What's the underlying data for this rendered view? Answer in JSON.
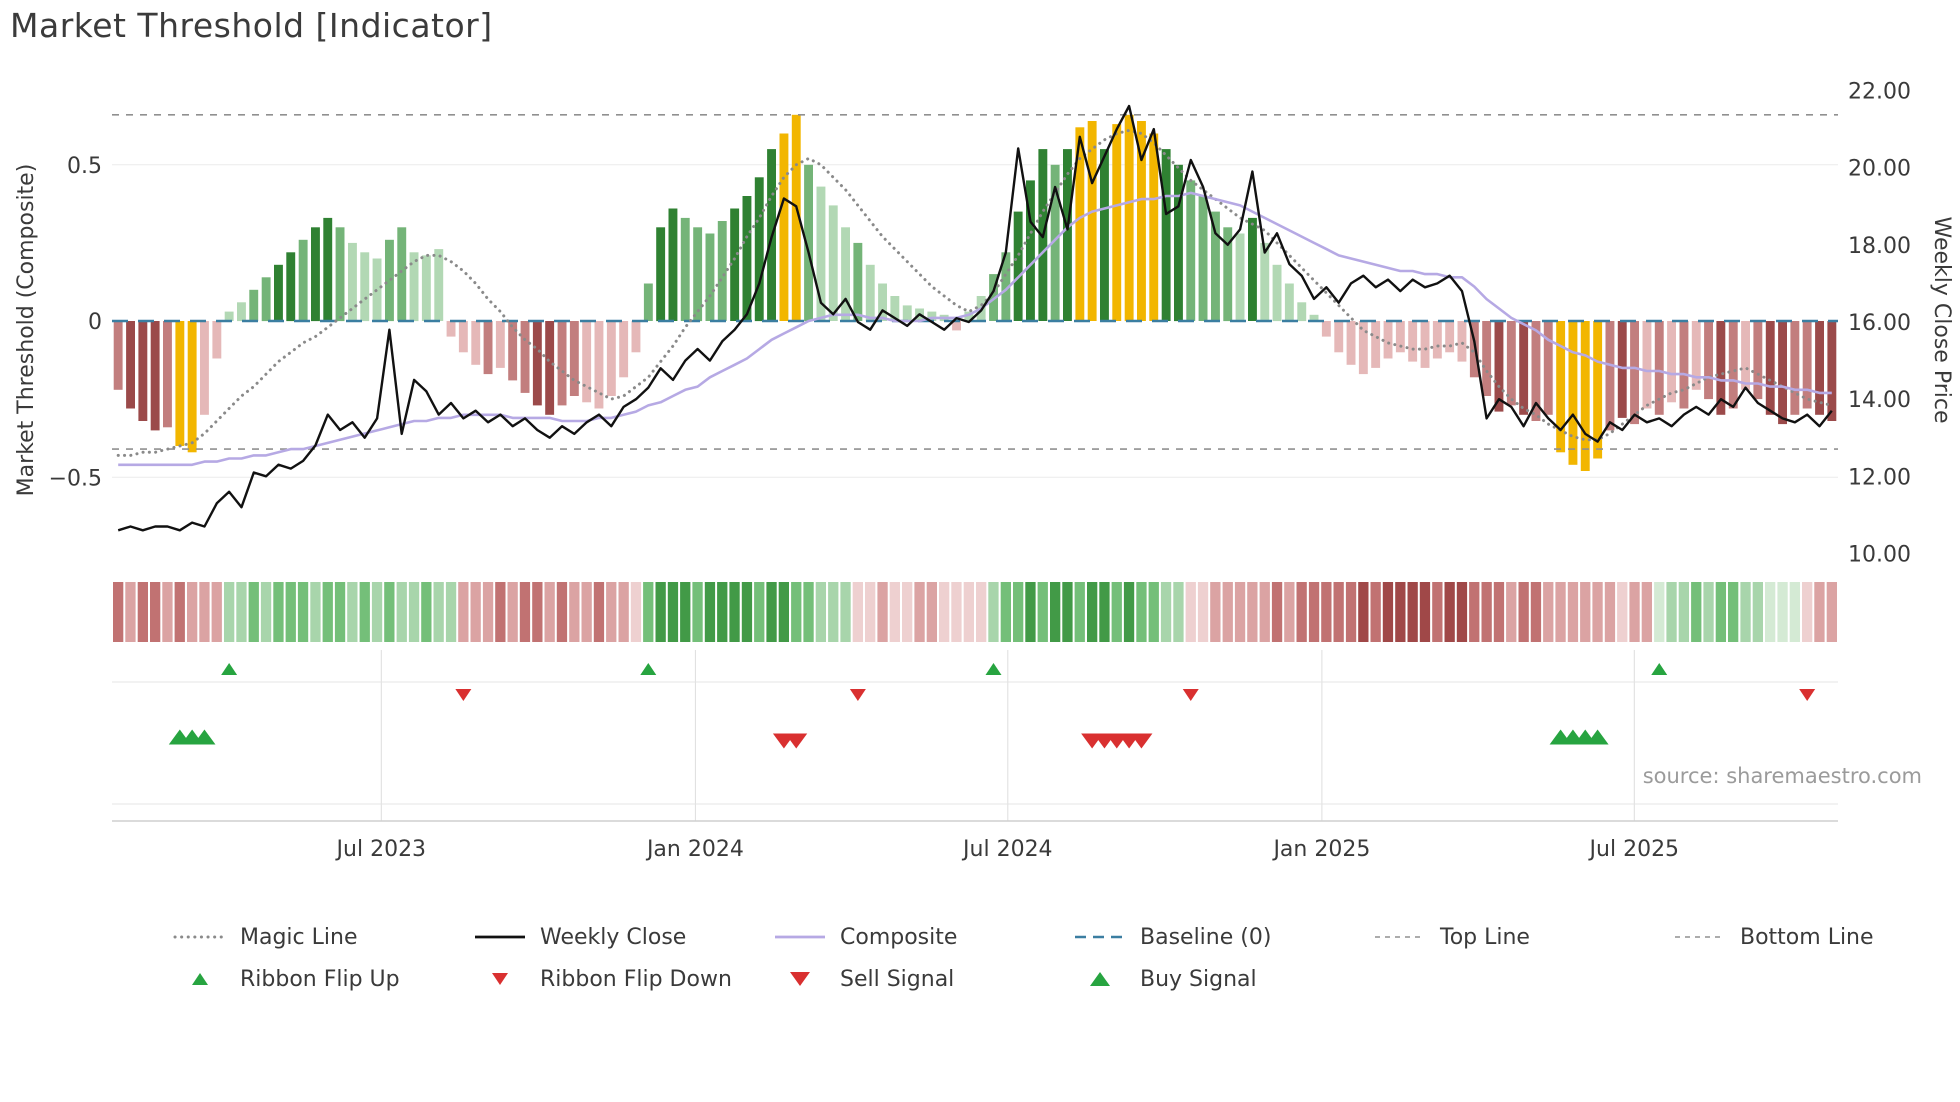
{
  "title": "Market Threshold [Indicator]",
  "source_text": "source: sharemaestro.com",
  "colors": {
    "bar": {
      "dg": "#2f8132",
      "mg": "#74b478",
      "lg": "#b2d8b4",
      "dr": "#9b4a4a",
      "mr": "#c27e7e",
      "lr": "#e5b8b8",
      "y": "#f2b600"
    },
    "ribbon": {
      "g1": "#d4ead4",
      "g2": "#a8d5ab",
      "g3": "#74bf79",
      "g4": "#429a47",
      "r1": "#eed0d0",
      "r2": "#dba3a3",
      "r3": "#c17272",
      "r4": "#a04848"
    },
    "weekly_close": "#111111",
    "composite_line": "#b6a9e4",
    "magic_line": "#8a8a8a",
    "baseline": "#3b7ea1",
    "guide": "#909090",
    "signal_green": "#27a440",
    "signal_red": "#d93030",
    "grid": "#ececec",
    "panel_grid": "#dedede",
    "panel_rule": "#e4e4e4",
    "axis_line": "#cfcfcf",
    "text": "#3a3a3a"
  },
  "legend": {
    "row1": [
      {
        "id": "magic-line",
        "label": "Magic Line",
        "swatch": "dotted-gray",
        "icon": "magic-line-swatch"
      },
      {
        "id": "weekly-close",
        "label": "Weekly Close",
        "swatch": "solid-black",
        "icon": "weekly-close-swatch"
      },
      {
        "id": "composite",
        "label": "Composite",
        "swatch": "solid-lavender",
        "icon": "composite-swatch"
      },
      {
        "id": "baseline",
        "label": "Baseline (0)",
        "swatch": "dashed-blue",
        "icon": "baseline-swatch"
      },
      {
        "id": "top-line",
        "label": "Top Line",
        "swatch": "dashed-gray",
        "icon": "top-line-swatch"
      },
      {
        "id": "bottom-line",
        "label": "Bottom Line",
        "swatch": "dashed-gray",
        "icon": "bottom-line-swatch"
      }
    ],
    "row2": [
      {
        "id": "ribbon-flip-up",
        "label": "Ribbon Flip Up",
        "swatch": "tri-up-green",
        "icon": "ribbon-flip-up-icon"
      },
      {
        "id": "ribbon-flip-down",
        "label": "Ribbon Flip Down",
        "swatch": "tri-down-red",
        "icon": "ribbon-flip-down-icon"
      },
      {
        "id": "sell-signal",
        "label": "Sell Signal",
        "swatch": "tri-down-red-lg",
        "icon": "sell-signal-icon"
      },
      {
        "id": "buy-signal",
        "label": "Buy Signal",
        "swatch": "tri-up-green-lg",
        "icon": "buy-signal-icon"
      }
    ]
  },
  "chart_data": {
    "type": "combo",
    "title": "Market Threshold [Indicator]",
    "x_axis": {
      "unit": "weekly",
      "tick_labels": [
        "Jul 2023",
        "Jan 2024",
        "Jul 2024",
        "Jan 2025",
        "Jul 2025"
      ],
      "tick_positions": [
        0.156,
        0.338,
        0.519,
        0.701,
        0.882
      ]
    },
    "left_axis": {
      "label": "Market Threshold (Composite)",
      "ticks": [
        0.5,
        0,
        -0.5
      ],
      "tick_labels": [
        "0.5",
        "0",
        "−0.5"
      ],
      "range": [
        -0.79,
        0.77
      ]
    },
    "right_axis": {
      "label": "Weekly Close Price",
      "ticks": [
        22,
        20,
        18,
        16,
        14,
        12,
        10
      ],
      "tick_labels": [
        "22.00",
        "20.00",
        "18.00",
        "16.00",
        "14.00",
        "12.00",
        "10.00"
      ],
      "range": [
        9.6,
        22.25
      ]
    },
    "reference_lines": {
      "baseline": 0,
      "top_line": 0.66,
      "bottom_line": -0.41
    },
    "series": {
      "composite_bars": {
        "values": [
          -0.22,
          -0.28,
          -0.32,
          -0.35,
          -0.34,
          -0.4,
          -0.42,
          -0.3,
          -0.12,
          0.03,
          0.06,
          0.1,
          0.14,
          0.18,
          0.22,
          0.26,
          0.3,
          0.33,
          0.3,
          0.25,
          0.22,
          0.2,
          0.26,
          0.3,
          0.22,
          0.21,
          0.23,
          -0.05,
          -0.1,
          -0.14,
          -0.17,
          -0.15,
          -0.19,
          -0.23,
          -0.27,
          -0.3,
          -0.27,
          -0.24,
          -0.26,
          -0.28,
          -0.24,
          -0.18,
          -0.1,
          0.12,
          0.3,
          0.36,
          0.33,
          0.3,
          0.28,
          0.32,
          0.36,
          0.4,
          0.46,
          0.55,
          0.6,
          0.66,
          0.5,
          0.43,
          0.37,
          0.3,
          0.25,
          0.18,
          0.12,
          0.08,
          0.05,
          0.04,
          0.03,
          0.02,
          -0.03,
          0.03,
          0.08,
          0.15,
          0.22,
          0.35,
          0.45,
          0.55,
          0.5,
          0.55,
          0.62,
          0.64,
          0.55,
          0.63,
          0.66,
          0.64,
          0.6,
          0.55,
          0.5,
          0.45,
          0.4,
          0.35,
          0.3,
          0.28,
          0.33,
          0.25,
          0.18,
          0.12,
          0.06,
          0.02,
          -0.05,
          -0.1,
          -0.14,
          -0.17,
          -0.15,
          -0.12,
          -0.1,
          -0.13,
          -0.15,
          -0.12,
          -0.1,
          -0.13,
          -0.18,
          -0.24,
          -0.29,
          -0.27,
          -0.3,
          -0.32,
          -0.3,
          -0.42,
          -0.46,
          -0.48,
          -0.44,
          -0.35,
          -0.31,
          -0.33,
          -0.28,
          -0.3,
          -0.26,
          -0.28,
          -0.22,
          -0.25,
          -0.3,
          -0.28,
          -0.22,
          -0.25,
          -0.3,
          -0.33,
          -0.3,
          -0.28,
          -0.3,
          -0.32
        ],
        "colors": [
          "mr",
          "dr",
          "dr",
          "dr",
          "mr",
          "y",
          "y",
          "lr",
          "lr",
          "lg",
          "lg",
          "mg",
          "mg",
          "dg",
          "dg",
          "mg",
          "dg",
          "dg",
          "mg",
          "lg",
          "lg",
          "lg",
          "mg",
          "mg",
          "lg",
          "lg",
          "lg",
          "lr",
          "lr",
          "lr",
          "mr",
          "lr",
          "mr",
          "mr",
          "dr",
          "dr",
          "mr",
          "mr",
          "lr",
          "lr",
          "lr",
          "lr",
          "lr",
          "mg",
          "dg",
          "dg",
          "mg",
          "mg",
          "mg",
          "mg",
          "dg",
          "dg",
          "dg",
          "dg",
          "y",
          "y",
          "mg",
          "lg",
          "lg",
          "lg",
          "mg",
          "lg",
          "lg",
          "lg",
          "lg",
          "lg",
          "lg",
          "lg",
          "lr",
          "lg",
          "lg",
          "mg",
          "mg",
          "dg",
          "dg",
          "dg",
          "mg",
          "dg",
          "y",
          "y",
          "dg",
          "y",
          "y",
          "y",
          "y",
          "dg",
          "dg",
          "mg",
          "mg",
          "mg",
          "mg",
          "lg",
          "dg",
          "lg",
          "lg",
          "lg",
          "lg",
          "lg",
          "lr",
          "lr",
          "lr",
          "lr",
          "lr",
          "lr",
          "lr",
          "lr",
          "lr",
          "lr",
          "lr",
          "lr",
          "mr",
          "mr",
          "dr",
          "mr",
          "dr",
          "mr",
          "mr",
          "y",
          "y",
          "y",
          "y",
          "mr",
          "dr",
          "mr",
          "lr",
          "mr",
          "lr",
          "mr",
          "lr",
          "mr",
          "dr",
          "mr",
          "lr",
          "mr",
          "dr",
          "dr",
          "mr",
          "mr",
          "dr",
          "dr"
        ]
      },
      "weekly_close": [
        10.6,
        10.7,
        10.6,
        10.7,
        10.7,
        10.6,
        10.8,
        10.7,
        11.3,
        11.6,
        11.2,
        12.1,
        12.0,
        12.3,
        12.2,
        12.4,
        12.8,
        13.6,
        13.2,
        13.4,
        13.0,
        13.5,
        15.8,
        13.1,
        14.5,
        14.2,
        13.6,
        13.9,
        13.5,
        13.7,
        13.4,
        13.6,
        13.3,
        13.5,
        13.2,
        13.0,
        13.3,
        13.1,
        13.4,
        13.6,
        13.3,
        13.8,
        14.0,
        14.3,
        14.8,
        14.5,
        15.0,
        15.3,
        15.0,
        15.5,
        15.8,
        16.2,
        17.0,
        18.2,
        19.2,
        19.0,
        17.8,
        16.5,
        16.2,
        16.6,
        16.0,
        15.8,
        16.3,
        16.1,
        15.9,
        16.2,
        16.0,
        15.8,
        16.1,
        16.0,
        16.3,
        16.8,
        17.8,
        20.5,
        18.6,
        18.2,
        19.5,
        18.4,
        20.8,
        19.6,
        20.3,
        21.0,
        21.6,
        20.2,
        21.0,
        18.8,
        19.0,
        20.2,
        19.5,
        18.3,
        18.0,
        18.4,
        19.9,
        17.8,
        18.3,
        17.5,
        17.2,
        16.6,
        16.9,
        16.5,
        17.0,
        17.2,
        16.9,
        17.1,
        16.8,
        17.1,
        16.9,
        17.0,
        17.2,
        16.8,
        15.5,
        13.5,
        14.0,
        13.8,
        13.3,
        13.9,
        13.5,
        13.2,
        13.6,
        13.1,
        12.9,
        13.4,
        13.2,
        13.6,
        13.4,
        13.5,
        13.3,
        13.6,
        13.8,
        13.6,
        14.0,
        13.8,
        14.3,
        13.9,
        13.7,
        13.5,
        13.4,
        13.6,
        13.3,
        13.7
      ],
      "composite_line": [
        -0.46,
        -0.46,
        -0.46,
        -0.46,
        -0.46,
        -0.46,
        -0.46,
        -0.45,
        -0.45,
        -0.44,
        -0.44,
        -0.43,
        -0.43,
        -0.42,
        -0.41,
        -0.41,
        -0.4,
        -0.39,
        -0.38,
        -0.37,
        -0.36,
        -0.35,
        -0.34,
        -0.33,
        -0.32,
        -0.32,
        -0.31,
        -0.31,
        -0.3,
        -0.3,
        -0.3,
        -0.3,
        -0.31,
        -0.31,
        -0.31,
        -0.31,
        -0.32,
        -0.32,
        -0.32,
        -0.31,
        -0.31,
        -0.3,
        -0.29,
        -0.27,
        -0.26,
        -0.24,
        -0.22,
        -0.21,
        -0.18,
        -0.16,
        -0.14,
        -0.12,
        -0.09,
        -0.06,
        -0.04,
        -0.02,
        0.0,
        0.01,
        0.02,
        0.02,
        0.02,
        0.01,
        0.01,
        0.0,
        0.0,
        0.0,
        0.01,
        0.01,
        0.01,
        0.02,
        0.04,
        0.07,
        0.1,
        0.14,
        0.18,
        0.22,
        0.26,
        0.3,
        0.33,
        0.35,
        0.36,
        0.37,
        0.38,
        0.39,
        0.39,
        0.4,
        0.4,
        0.41,
        0.4,
        0.39,
        0.38,
        0.37,
        0.35,
        0.33,
        0.31,
        0.29,
        0.27,
        0.25,
        0.23,
        0.21,
        0.2,
        0.19,
        0.18,
        0.17,
        0.16,
        0.16,
        0.15,
        0.15,
        0.14,
        0.14,
        0.11,
        0.07,
        0.04,
        0.01,
        -0.01,
        -0.03,
        -0.06,
        -0.08,
        -0.1,
        -0.11,
        -0.13,
        -0.14,
        -0.15,
        -0.15,
        -0.16,
        -0.16,
        -0.17,
        -0.17,
        -0.18,
        -0.18,
        -0.19,
        -0.19,
        -0.2,
        -0.2,
        -0.21,
        -0.21,
        -0.22,
        -0.22,
        -0.23,
        -0.23
      ],
      "magic_line": [
        -0.43,
        -0.43,
        -0.42,
        -0.42,
        -0.41,
        -0.4,
        -0.39,
        -0.36,
        -0.32,
        -0.28,
        -0.24,
        -0.21,
        -0.17,
        -0.13,
        -0.1,
        -0.07,
        -0.05,
        -0.02,
        0.01,
        0.04,
        0.07,
        0.1,
        0.13,
        0.16,
        0.19,
        0.21,
        0.21,
        0.19,
        0.16,
        0.12,
        0.07,
        0.03,
        -0.02,
        -0.06,
        -0.09,
        -0.13,
        -0.16,
        -0.19,
        -0.21,
        -0.23,
        -0.25,
        -0.24,
        -0.21,
        -0.18,
        -0.13,
        -0.08,
        -0.02,
        0.03,
        0.08,
        0.14,
        0.2,
        0.27,
        0.33,
        0.4,
        0.46,
        0.5,
        0.52,
        0.5,
        0.46,
        0.42,
        0.37,
        0.32,
        0.27,
        0.23,
        0.19,
        0.15,
        0.11,
        0.08,
        0.05,
        0.03,
        0.05,
        0.09,
        0.15,
        0.21,
        0.28,
        0.35,
        0.41,
        0.47,
        0.52,
        0.55,
        0.58,
        0.6,
        0.61,
        0.6,
        0.57,
        0.53,
        0.49,
        0.45,
        0.42,
        0.39,
        0.36,
        0.33,
        0.31,
        0.29,
        0.25,
        0.21,
        0.17,
        0.13,
        0.09,
        0.05,
        0.01,
        -0.03,
        -0.05,
        -0.07,
        -0.08,
        -0.09,
        -0.09,
        -0.08,
        -0.08,
        -0.07,
        -0.1,
        -0.16,
        -0.21,
        -0.25,
        -0.28,
        -0.3,
        -0.33,
        -0.35,
        -0.37,
        -0.38,
        -0.38,
        -0.36,
        -0.33,
        -0.3,
        -0.27,
        -0.25,
        -0.23,
        -0.22,
        -0.2,
        -0.18,
        -0.17,
        -0.16,
        -0.15,
        -0.17,
        -0.19,
        -0.21,
        -0.23,
        -0.25,
        -0.26,
        -0.27
      ]
    },
    "ribbon": [
      "r3",
      "r2",
      "r3",
      "r3",
      "r2",
      "r3",
      "r2",
      "r2",
      "r2",
      "g2",
      "g2",
      "g3",
      "g2",
      "g3",
      "g3",
      "g3",
      "g2",
      "g3",
      "g3",
      "g2",
      "g3",
      "g2",
      "g3",
      "g2",
      "g2",
      "g3",
      "g2",
      "g2",
      "r2",
      "r2",
      "r2",
      "r3",
      "r2",
      "r3",
      "r3",
      "r2",
      "r3",
      "r2",
      "r2",
      "r3",
      "r2",
      "r2",
      "r1",
      "g3",
      "g4",
      "g4",
      "g4",
      "g3",
      "g4",
      "g4",
      "g4",
      "g4",
      "g3",
      "g4",
      "g4",
      "g3",
      "g3",
      "g2",
      "g2",
      "g2",
      "r1",
      "r1",
      "r2",
      "r1",
      "r1",
      "r2",
      "r2",
      "r1",
      "r1",
      "r1",
      "r1",
      "g2",
      "g3",
      "g3",
      "g4",
      "g3",
      "g4",
      "g4",
      "g3",
      "g4",
      "g4",
      "g3",
      "g4",
      "g3",
      "g3",
      "g2",
      "g2",
      "r1",
      "r1",
      "r2",
      "r2",
      "r2",
      "r2",
      "r2",
      "r3",
      "r2",
      "r3",
      "r3",
      "r3",
      "r3",
      "r3",
      "r4",
      "r3",
      "r4",
      "r4",
      "r4",
      "r4",
      "r3",
      "r4",
      "r4",
      "r3",
      "r3",
      "r3",
      "r2",
      "r3",
      "r3",
      "r2",
      "r2",
      "r2",
      "r2",
      "r2",
      "r2",
      "r1",
      "r2",
      "r2",
      "g1",
      "g2",
      "g2",
      "g3",
      "g2",
      "g3",
      "g3",
      "g2",
      "g2",
      "g1",
      "g1",
      "g1",
      "r1",
      "r2",
      "r2"
    ],
    "signals": {
      "ribbon_flip_up_weeks": [
        9,
        43,
        71,
        125
      ],
      "ribbon_flip_down_weeks": [
        28,
        60,
        87,
        137
      ],
      "buy_signal_weeks": [
        5,
        6,
        7,
        117,
        118,
        119,
        120
      ],
      "sell_signal_weeks": [
        54,
        55,
        79,
        80,
        81,
        82,
        83
      ]
    }
  }
}
